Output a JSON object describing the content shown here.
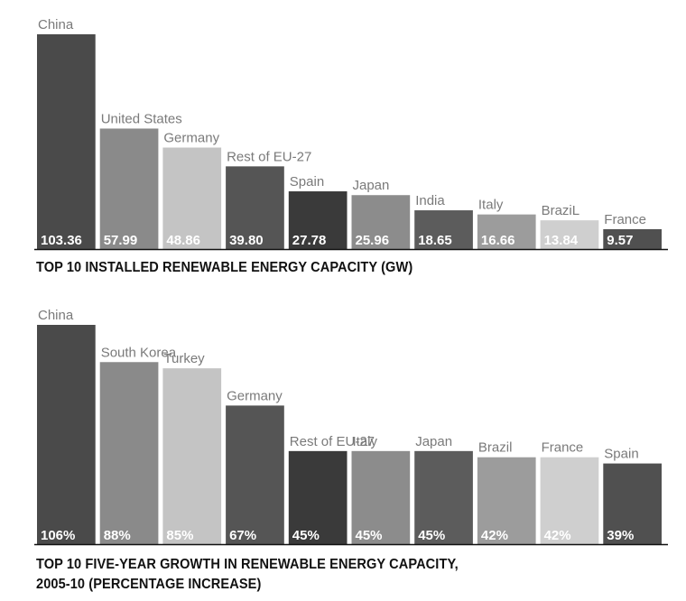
{
  "chart_data": [
    {
      "type": "bar",
      "title": "TOP 10 INSTALLED RENEWABLE ENERGY CAPACITY (GW)",
      "categories": [
        "China",
        "United States",
        "Germany",
        "Rest of EU-27",
        "Spain",
        "Japan",
        "India",
        "Italy",
        "BraziL",
        "France"
      ],
      "values": [
        103.36,
        57.99,
        48.86,
        39.8,
        27.78,
        25.96,
        18.65,
        16.66,
        13.84,
        9.57
      ],
      "data_labels": [
        "103.36",
        "57.99",
        "48.86",
        "39.80",
        "27.78",
        "25.96",
        "18.65",
        "16.66",
        "13.84",
        "9.57"
      ],
      "colors": [
        "#4a4a4a",
        "#8a8a8a",
        "#c4c4c4",
        "#555555",
        "#3a3a3a",
        "#8c8c8c",
        "#5c5c5c",
        "#9c9c9c",
        "#cfcfcf",
        "#505050"
      ],
      "ylim": [
        0,
        103.36
      ],
      "grid": false,
      "legend": "none"
    },
    {
      "type": "bar",
      "title": "TOP 10 FIVE-YEAR GROWTH IN RENEWABLE ENERGY CAPACITY,\n2005-10 (PERCENTAGE INCREASE)",
      "categories": [
        "China",
        "South Korea",
        "Turkey",
        "Germany",
        "Rest of EU-27",
        "Italy",
        "Japan",
        "Brazil",
        "France",
        "Spain"
      ],
      "values": [
        106,
        88,
        85,
        67,
        45,
        45,
        45,
        42,
        42,
        39
      ],
      "data_labels": [
        "106%",
        "88%",
        "85%",
        "67%",
        "45%",
        "45%",
        "45%",
        "42%",
        "42%",
        "39%"
      ],
      "colors": [
        "#4a4a4a",
        "#8a8a8a",
        "#c4c4c4",
        "#555555",
        "#3a3a3a",
        "#8c8c8c",
        "#5c5c5c",
        "#9c9c9c",
        "#cfcfcf",
        "#505050"
      ],
      "ylim": [
        0,
        106
      ],
      "grid": false,
      "legend": "none"
    }
  ]
}
